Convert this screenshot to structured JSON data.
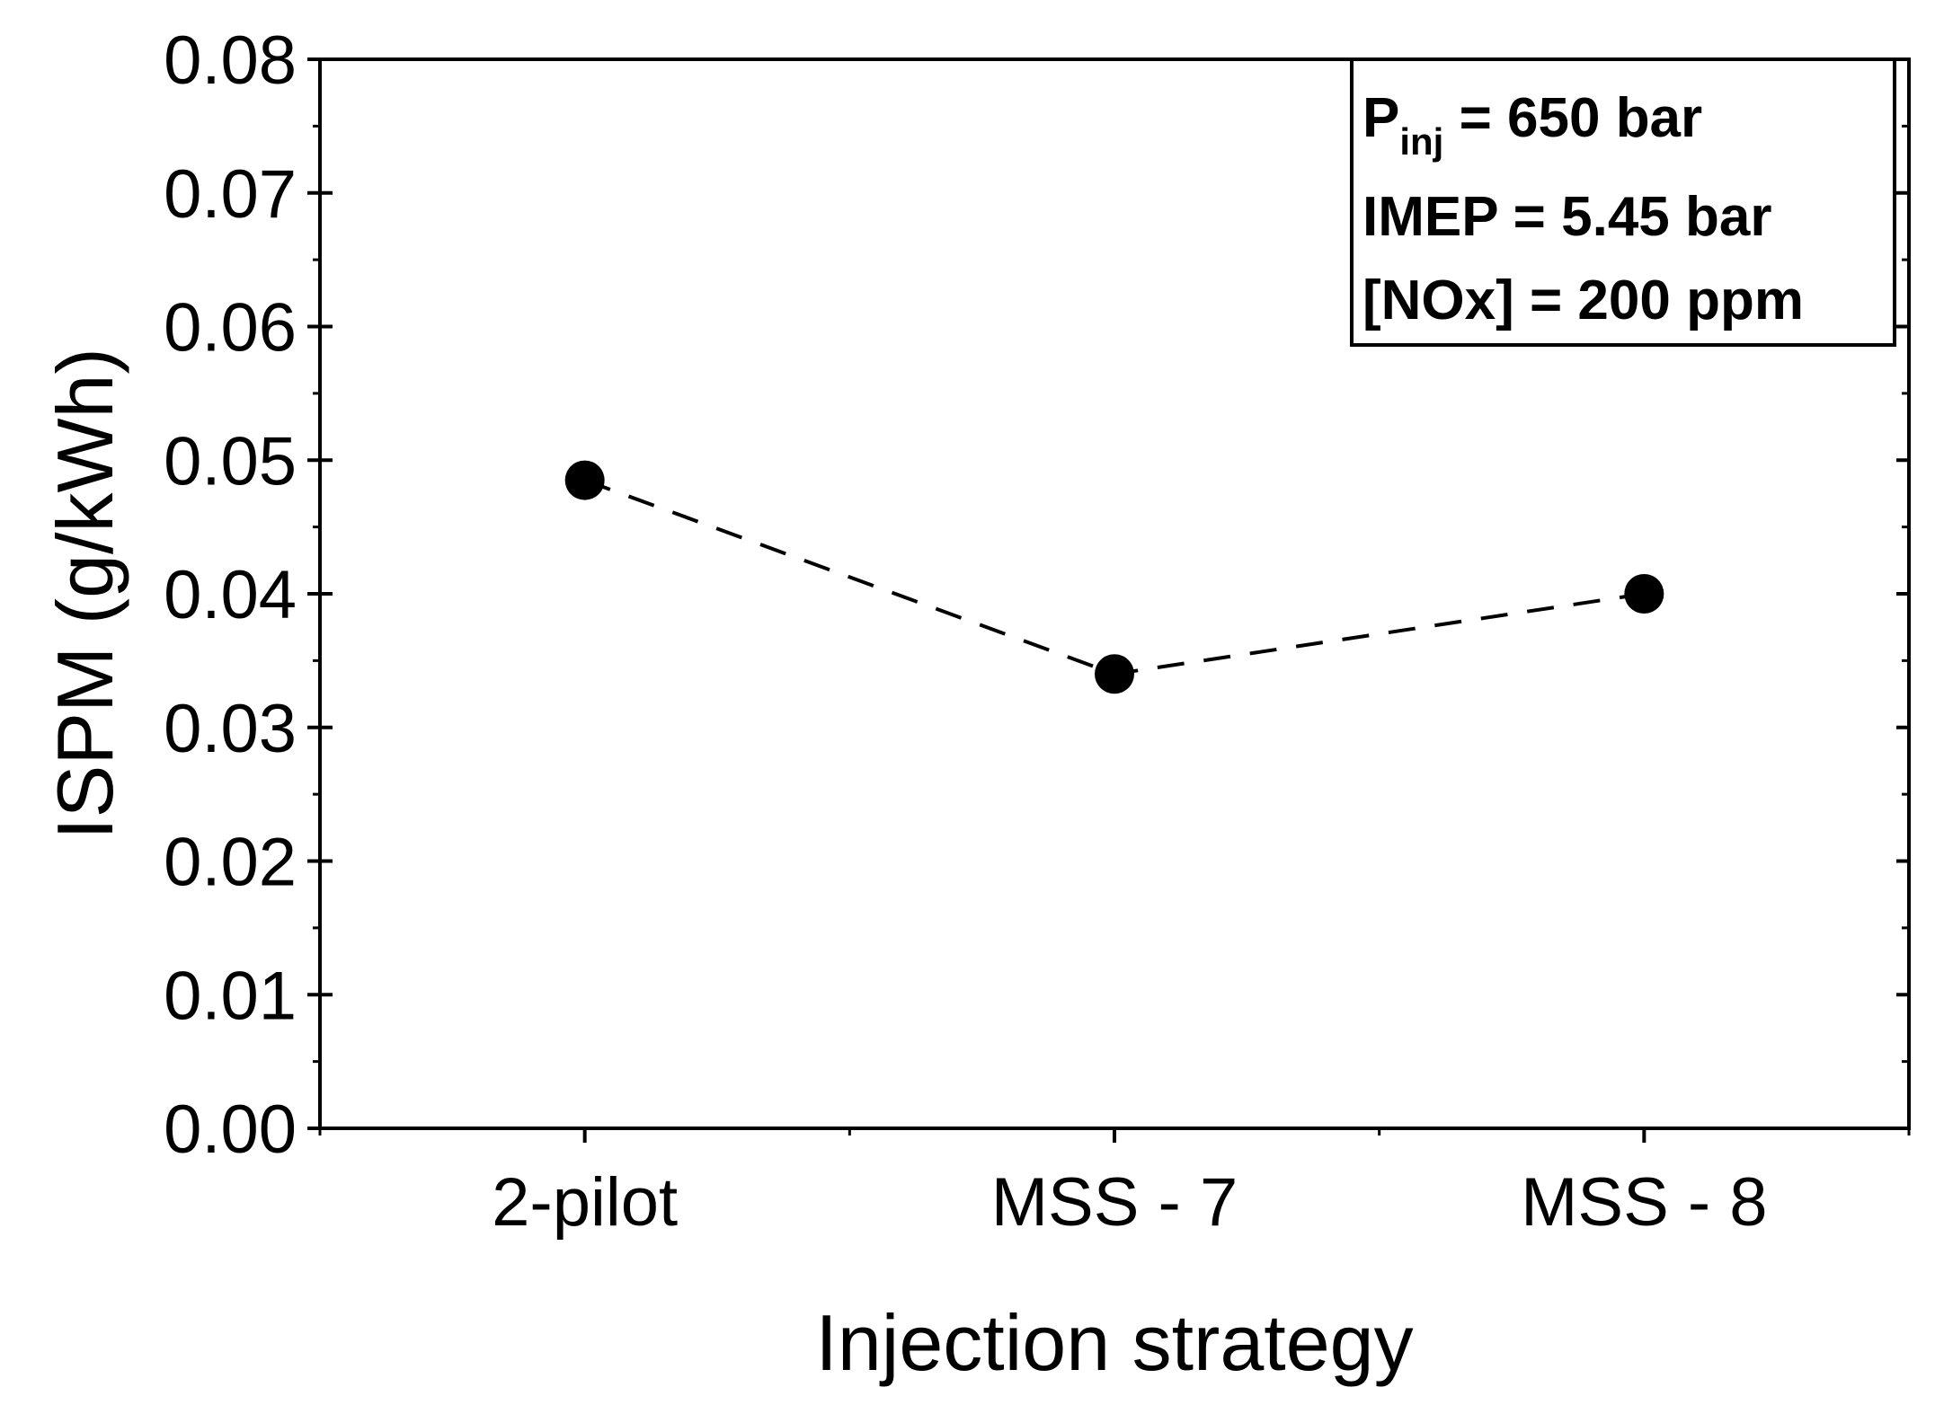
{
  "chart_data": {
    "type": "line",
    "title": "",
    "xlabel": "Injection strategy",
    "ylabel": "ISPM (g/kWh)",
    "categories": [
      "2-pilot",
      "MSS - 7",
      "MSS - 8"
    ],
    "series": [
      {
        "name": "ISPM",
        "values": [
          0.0485,
          0.034,
          0.04
        ],
        "line_style": "dashed",
        "marker": "filled-circle",
        "color": "#000000"
      }
    ],
    "ylim": [
      0,
      0.08
    ],
    "yticks": [
      "0.00",
      "0.01",
      "0.02",
      "0.03",
      "0.04",
      "0.05",
      "0.06",
      "0.07",
      "0.08"
    ],
    "grid": false,
    "annotation": {
      "line1_main": "P",
      "line1_sub": "inj",
      "line1_rest": " = 650 bar",
      "line2": "IMEP = 5.45 bar",
      "line3": "[NOx] = 200 ppm",
      "placement": "top-right"
    }
  }
}
